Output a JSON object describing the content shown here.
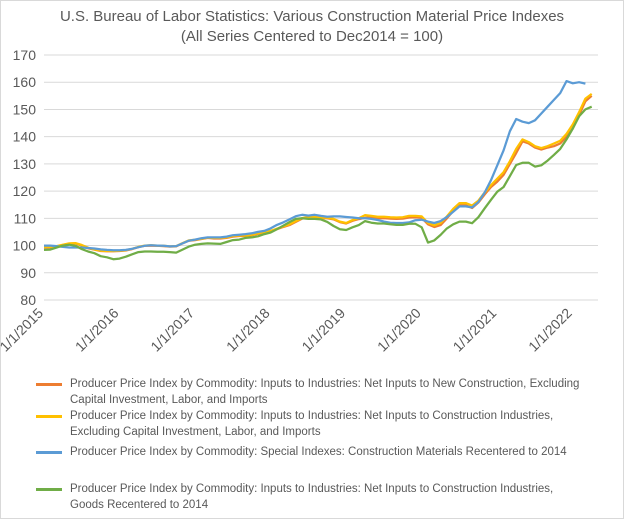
{
  "chart_data": {
    "type": "line",
    "title": "U.S. Bureau of Labor Statistics: Various Construction Material Price Indexes",
    "subtitle": "(All Series Centered to Dec2014 = 100)",
    "xlabel": "",
    "ylabel": "",
    "ylim": [
      80,
      170
    ],
    "yticks": [
      "80",
      "90",
      "100",
      "110",
      "120",
      "130",
      "140",
      "150",
      "160",
      "170"
    ],
    "xlim": [
      0,
      88
    ],
    "xtick_labels": [
      "1/1/2015",
      "1/1/2016",
      "1/1/2017",
      "1/1/2018",
      "1/1/2019",
      "1/1/2020",
      "1/1/2021",
      "1/1/2022"
    ],
    "xtick_months": [
      0,
      12,
      24,
      36,
      48,
      60,
      72,
      84
    ],
    "grid": true,
    "legend": "bottom",
    "series": [
      {
        "name": "Producer Price Index by Commodity: Inputs to Industries: Net Inputs to New Construction, Excluding Capital Investment, Labor, and Imports",
        "color": "#ED7D31",
        "values": [
          99.3,
          99.3,
          99.6,
          100.2,
          100.7,
          100.8,
          100.0,
          99.0,
          98.5,
          98.0,
          97.9,
          97.9,
          98.0,
          98.2,
          98.7,
          99.4,
          99.9,
          100.0,
          99.9,
          99.8,
          99.6,
          99.7,
          100.8,
          101.8,
          102.0,
          102.4,
          102.8,
          102.6,
          102.6,
          102.8,
          103.3,
          103.5,
          103.5,
          103.8,
          104.3,
          104.8,
          105.2,
          106.0,
          106.8,
          107.5,
          108.7,
          109.9,
          110.3,
          110.3,
          110.1,
          110.0,
          109.6,
          108.6,
          108.1,
          109.1,
          109.7,
          110.2,
          110.3,
          110.0,
          110.1,
          109.9,
          109.8,
          109.9,
          110.3,
          110.4,
          110.2,
          107.8,
          106.8,
          107.5,
          110.0,
          112.7,
          114.8,
          114.8,
          113.8,
          115.8,
          118.8,
          121.5,
          123.5,
          126.0,
          130.0,
          134.0,
          138.3,
          137.5,
          136.0,
          135.3,
          136.0,
          136.5,
          137.5,
          140.0,
          143.0,
          148.0,
          153.0,
          155.0
        ]
      },
      {
        "name": "Producer Price Index by Commodity: Inputs to Industries: Net Inputs to Construction Industries, Excluding Capital Investment, Labor, and Imports",
        "color": "#FFC000",
        "values": [
          99.5,
          99.5,
          99.8,
          100.3,
          100.8,
          100.9,
          100.2,
          99.2,
          98.6,
          98.1,
          98.0,
          98.0,
          98.1,
          98.3,
          98.8,
          99.5,
          100.0,
          100.1,
          100.0,
          99.9,
          99.7,
          99.8,
          100.9,
          101.9,
          102.1,
          102.5,
          102.9,
          102.8,
          102.8,
          103.0,
          103.5,
          103.7,
          103.7,
          104.0,
          104.5,
          105.0,
          105.4,
          106.2,
          107.0,
          107.8,
          109.0,
          110.1,
          110.5,
          110.5,
          110.3,
          110.2,
          109.8,
          108.8,
          108.3,
          109.4,
          110.0,
          111.2,
          110.9,
          110.6,
          110.6,
          110.4,
          110.3,
          110.4,
          110.9,
          110.9,
          110.7,
          108.3,
          107.4,
          108.3,
          110.7,
          113.5,
          115.6,
          115.6,
          114.7,
          116.5,
          119.5,
          122.2,
          124.6,
          127.0,
          131.0,
          135.5,
          139.0,
          138.0,
          136.5,
          135.8,
          136.5,
          137.5,
          138.5,
          141.0,
          144.5,
          149.0,
          154.0,
          155.7
        ]
      },
      {
        "name": "Producer Price Index by Commodity: Special Indexes: Construction Materials Recentered to 2014",
        "color": "#5B9BD5",
        "values": [
          100.0,
          100.0,
          99.8,
          99.5,
          99.3,
          99.3,
          99.3,
          99.1,
          98.9,
          98.6,
          98.4,
          98.3,
          98.3,
          98.4,
          98.8,
          99.4,
          99.9,
          100.1,
          100.0,
          99.9,
          99.7,
          99.8,
          100.8,
          101.8,
          102.2,
          102.7,
          103.0,
          103.0,
          103.0,
          103.3,
          103.8,
          104.0,
          104.2,
          104.5,
          105.0,
          105.4,
          106.3,
          107.6,
          108.5,
          109.6,
          110.8,
          111.3,
          111.0,
          111.3,
          110.9,
          110.6,
          110.7,
          110.7,
          110.5,
          110.3,
          110.0,
          110.0,
          109.8,
          109.4,
          108.8,
          108.4,
          108.3,
          108.3,
          108.5,
          109.3,
          109.5,
          108.8,
          108.3,
          109.0,
          110.5,
          112.4,
          114.4,
          114.4,
          114.0,
          116.0,
          119.5,
          124.0,
          129.5,
          135.0,
          142.0,
          146.5,
          145.5,
          145.0,
          146.0,
          148.5,
          151.0,
          153.5,
          156.0,
          160.4,
          159.6,
          160.0,
          159.5
        ]
      },
      {
        "name": "Producer Price Index by Commodity: Inputs to Industries: Net Inputs to Construction Industries, Goods Recentered to 2014",
        "color": "#70AD47",
        "values": [
          98.4,
          98.5,
          99.3,
          100.0,
          100.3,
          99.9,
          98.7,
          97.8,
          97.2,
          96.1,
          95.7,
          95.0,
          95.2,
          95.9,
          96.8,
          97.6,
          97.8,
          97.8,
          97.7,
          97.7,
          97.6,
          97.4,
          98.5,
          99.6,
          100.3,
          100.6,
          100.8,
          100.7,
          100.6,
          101.3,
          102.0,
          102.2,
          102.8,
          103.0,
          103.4,
          104.2,
          104.8,
          106.0,
          107.3,
          108.6,
          109.8,
          110.0,
          109.8,
          109.8,
          109.6,
          108.7,
          107.2,
          106.0,
          105.7,
          106.7,
          107.5,
          109.0,
          108.4,
          108.1,
          108.1,
          107.8,
          107.6,
          107.6,
          108.0,
          108.0,
          106.7,
          101.1,
          101.9,
          103.9,
          106.3,
          107.8,
          108.8,
          108.8,
          108.2,
          110.4,
          113.7,
          116.8,
          119.8,
          121.5,
          125.5,
          129.6,
          130.4,
          130.4,
          129.0,
          129.5,
          131.2,
          133.3,
          135.5,
          139.0,
          143.0,
          147.5,
          150.0,
          151.0
        ]
      }
    ]
  }
}
